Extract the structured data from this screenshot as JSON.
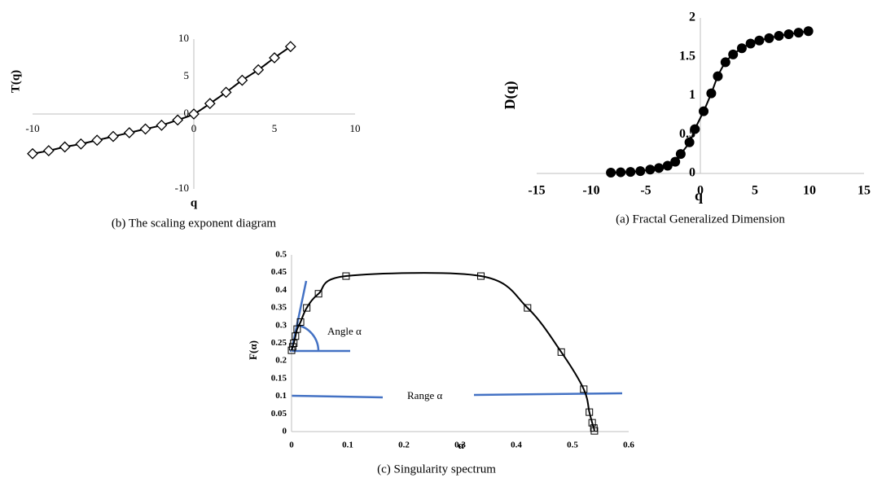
{
  "chart_data": [
    {
      "type": "line",
      "caption": "(b) The scaling exponent diagram",
      "x_label": "q",
      "y_label": "T(q)",
      "x": [
        -10,
        -9,
        -8,
        -7,
        -6,
        -5,
        -4,
        -3,
        -2,
        -1,
        0,
        1,
        2,
        3,
        4,
        5,
        6
      ],
      "values": [
        -5.3,
        -4.9,
        -4.4,
        -4.0,
        -3.5,
        -3.0,
        -2.5,
        -2.0,
        -1.5,
        -0.8,
        0,
        1.4,
        2.9,
        4.5,
        5.9,
        7.5,
        9.0
      ],
      "xlim": [
        -10,
        10
      ],
      "ylim": [
        -10,
        10
      ],
      "xticks": [
        -10,
        0,
        5,
        10
      ],
      "yticks": [
        -10,
        0,
        5,
        10
      ],
      "marker": "diamond",
      "color": "#000000"
    },
    {
      "type": "line",
      "caption": "(a) Fractal Generalized Dimension",
      "x_label": "q",
      "y_label": "D(q)",
      "x": [
        -8.2,
        -7.3,
        -6.4,
        -5.5,
        -4.6,
        -3.8,
        -3.0,
        -2.3,
        -1.8,
        -1.0,
        -0.5,
        0.3,
        1.0,
        1.6,
        2.3,
        3.0,
        3.8,
        4.6,
        5.4,
        6.3,
        7.2,
        8.1,
        9.0,
        9.9
      ],
      "values": [
        0.01,
        0.015,
        0.02,
        0.03,
        0.05,
        0.07,
        0.1,
        0.15,
        0.25,
        0.4,
        0.57,
        0.8,
        1.03,
        1.25,
        1.43,
        1.53,
        1.61,
        1.67,
        1.71,
        1.74,
        1.77,
        1.79,
        1.81,
        1.83
      ],
      "xlim": [
        -15,
        15
      ],
      "ylim": [
        0,
        2
      ],
      "xticks": [
        -15,
        -10,
        -5,
        0,
        5,
        10,
        15
      ],
      "yticks": [
        0,
        0.5,
        1,
        1.5,
        2
      ],
      "marker": "circle",
      "color": "#000000"
    },
    {
      "type": "line",
      "caption": "(c) Singularity spectrum",
      "x_label": "α",
      "y_label": "F(α)",
      "x": [
        0,
        0.002,
        0.004,
        0.007,
        0.01,
        0.016,
        0.027,
        0.048,
        0.097,
        0.337,
        0.42,
        0.48,
        0.52,
        0.53,
        0.535,
        0.538,
        0.539
      ],
      "values": [
        0.23,
        0.24,
        0.25,
        0.27,
        0.29,
        0.31,
        0.35,
        0.39,
        0.44,
        0.44,
        0.35,
        0.225,
        0.12,
        0.055,
        0.025,
        0.01,
        0.002
      ],
      "xlim": [
        0,
        0.6
      ],
      "ylim": [
        0,
        0.5
      ],
      "xticks": [
        0,
        0.1,
        0.2,
        0.3,
        0.4,
        0.5,
        0.6
      ],
      "yticks": [
        0,
        0.05,
        0.1,
        0.15,
        0.2,
        0.25,
        0.3,
        0.35,
        0.4,
        0.45,
        0.5
      ],
      "marker": "square",
      "color": "#000000",
      "annotations": [
        "Angle α",
        "Range α"
      ]
    }
  ]
}
